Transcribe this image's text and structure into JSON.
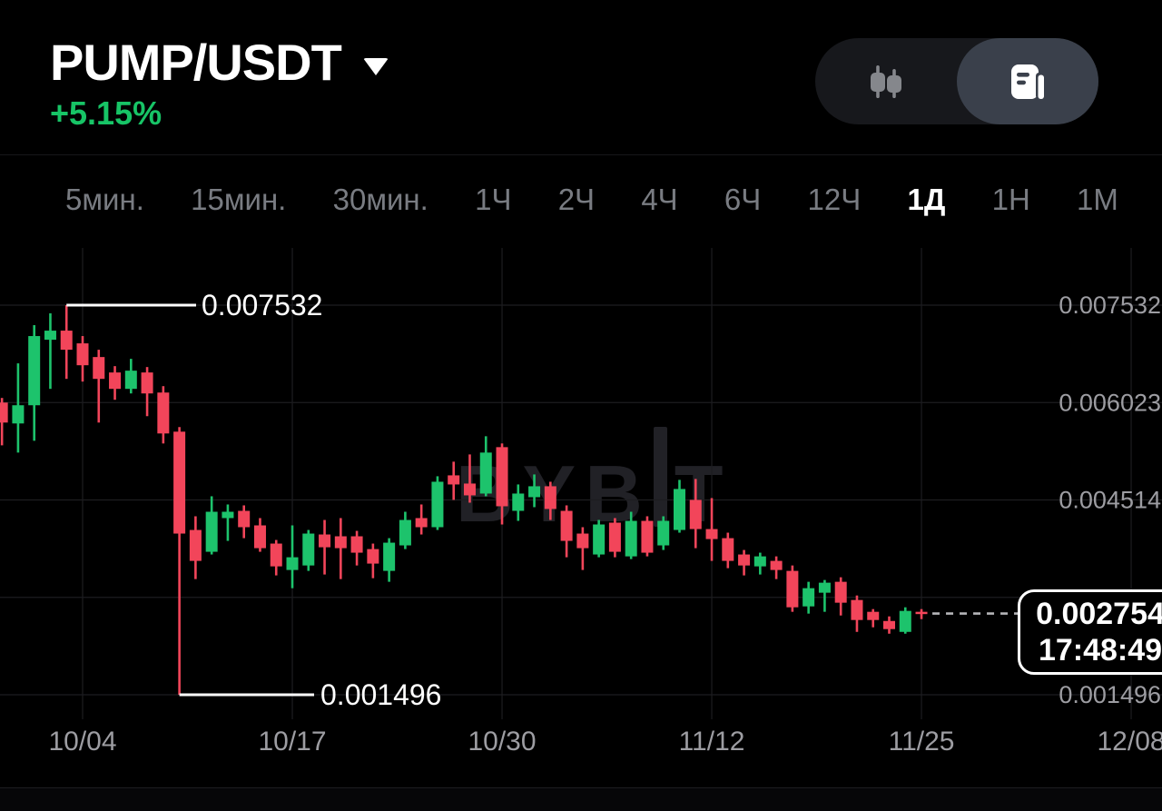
{
  "header": {
    "symbol": "PUMP/USDT",
    "change": "+5.15%"
  },
  "view_toggle": {
    "options": [
      {
        "name": "candlestick-view",
        "active": false
      },
      {
        "name": "orderbook-view",
        "active": true
      }
    ]
  },
  "timeframes": [
    {
      "label": "5мин.",
      "active": false
    },
    {
      "label": "15мин.",
      "active": false
    },
    {
      "label": "30мин.",
      "active": false
    },
    {
      "label": "1Ч",
      "active": false
    },
    {
      "label": "2Ч",
      "active": false
    },
    {
      "label": "4Ч",
      "active": false
    },
    {
      "label": "6Ч",
      "active": false
    },
    {
      "label": "12Ч",
      "active": false
    },
    {
      "label": "1Д",
      "active": true
    },
    {
      "label": "1Н",
      "active": false
    },
    {
      "label": "1М",
      "active": false
    }
  ],
  "watermark": {
    "left": "BYB",
    "right": "T"
  },
  "chart_data": {
    "type": "candlestick",
    "symbol": "PUMP/USDT",
    "timeframe": "1Д",
    "colors": {
      "up": "#1dc36c",
      "down": "#f2455a",
      "grid": "#1d1d20",
      "axis_text": "#9d9da2",
      "marker": "#ffffff",
      "dashed_line": "#b5b5b8"
    },
    "y_axis": {
      "labels": [
        {
          "text": "0.007532",
          "value": 0.007532
        },
        {
          "text": "0.006023",
          "value": 0.006023
        },
        {
          "text": "0.004514",
          "value": 0.004514
        },
        {
          "text": "0.001496",
          "value": 0.001496
        }
      ],
      "grid_values": [
        0.007532,
        0.006023,
        0.004514,
        0.003005,
        0.001496
      ],
      "range": [
        0.001496,
        0.007532
      ]
    },
    "x_axis": {
      "ticks": [
        {
          "label": "10/04",
          "index": 5
        },
        {
          "label": "10/17",
          "index": 18
        },
        {
          "label": "10/30",
          "index": 31
        },
        {
          "label": "11/12",
          "index": 44
        },
        {
          "label": "11/25",
          "index": 57
        },
        {
          "label": "12/08",
          "index": 70
        }
      ]
    },
    "high_marker": {
      "text": "0.007532",
      "value": 0.007532,
      "candle_index": 4
    },
    "low_marker": {
      "text": "0.001496",
      "value": 0.001496,
      "candle_index": 11
    },
    "last_price": {
      "price": "0.002754",
      "time": "17:48:49",
      "value": 0.002754
    },
    "candles": [
      [
        "09/29",
        0.006023,
        0.006094,
        0.00536,
        0.005713
      ],
      [
        "09/30",
        0.005699,
        0.00663,
        0.005248,
        0.005981
      ],
      [
        "10/01",
        0.005981,
        0.007222,
        0.005431,
        0.007053
      ],
      [
        "10/02",
        0.006996,
        0.007405,
        0.006235,
        0.007137
      ],
      [
        "10/03",
        0.007137,
        0.007532,
        0.00639,
        0.006841
      ],
      [
        "10/04",
        0.00694,
        0.007053,
        0.006348,
        0.006601
      ],
      [
        "10/05",
        0.006728,
        0.006841,
        0.005713,
        0.00639
      ],
      [
        "10/06",
        0.006489,
        0.006587,
        0.006066,
        0.006235
      ],
      [
        "10/07",
        0.006235,
        0.0067,
        0.006164,
        0.006517
      ],
      [
        "10/08",
        0.006489,
        0.006573,
        0.005812,
        0.006164
      ],
      [
        "10/09",
        0.006178,
        0.006277,
        0.005389,
        0.005544
      ],
      [
        "10/10",
        0.005572,
        0.005643,
        0.001496,
        0.003993
      ],
      [
        "10/11",
        0.004049,
        0.004261,
        0.003288,
        0.00357
      ],
      [
        "10/12",
        0.003711,
        0.004571,
        0.003669,
        0.004331
      ],
      [
        "10/13",
        0.004233,
        0.004444,
        0.00388,
        0.004331
      ],
      [
        "10/14",
        0.004345,
        0.00443,
        0.003922,
        0.004092
      ],
      [
        "10/15",
        0.00412,
        0.004233,
        0.003711,
        0.003767
      ],
      [
        "10/16",
        0.003838,
        0.003894,
        0.003345,
        0.003485
      ],
      [
        "10/17",
        0.003429,
        0.00412,
        0.003147,
        0.003626
      ],
      [
        "10/18",
        0.003499,
        0.004049,
        0.003415,
        0.003993
      ],
      [
        "10/19",
        0.003979,
        0.004204,
        0.003359,
        0.003781
      ],
      [
        "10/20",
        0.003951,
        0.004233,
        0.003288,
        0.003767
      ],
      [
        "10/21",
        0.003951,
        0.004035,
        0.003499,
        0.003697
      ],
      [
        "10/22",
        0.003753,
        0.003838,
        0.003302,
        0.003528
      ],
      [
        "10/23",
        0.003415,
        0.003922,
        0.003246,
        0.003852
      ],
      [
        "10/24",
        0.00381,
        0.004331,
        0.003753,
        0.004204
      ],
      [
        "10/25",
        0.004233,
        0.004444,
        0.003979,
        0.004092
      ],
      [
        "10/26",
        0.004092,
        0.004881,
        0.004049,
        0.004796
      ],
      [
        "10/27",
        0.004895,
        0.005107,
        0.004515,
        0.004754
      ],
      [
        "10/28",
        0.004768,
        0.005219,
        0.004472,
        0.004585
      ],
      [
        "10/29",
        0.004613,
        0.005501,
        0.004571,
        0.005248
      ],
      [
        "10/30",
        0.005332,
        0.005389,
        0.004134,
        0.004416
      ],
      [
        "10/31",
        0.004345,
        0.004754,
        0.00419,
        0.004613
      ],
      [
        "11/01",
        0.004557,
        0.004909,
        0.004402,
        0.004726
      ],
      [
        "11/02",
        0.004726,
        0.004796,
        0.004204,
        0.004374
      ],
      [
        "11/03",
        0.004345,
        0.00443,
        0.003626,
        0.00388
      ],
      [
        "11/04",
        0.003993,
        0.004092,
        0.003429,
        0.003767
      ],
      [
        "11/05",
        0.003669,
        0.004204,
        0.003626,
        0.004134
      ],
      [
        "11/06",
        0.004162,
        0.004233,
        0.003626,
        0.003711
      ],
      [
        "11/07",
        0.00364,
        0.004331,
        0.003598,
        0.00419
      ],
      [
        "11/08",
        0.00419,
        0.004261,
        0.00364,
        0.003697
      ],
      [
        "11/09",
        0.00381,
        0.004261,
        0.003739,
        0.00419
      ],
      [
        "11/10",
        0.004049,
        0.004825,
        0.004007,
        0.004684
      ],
      [
        "11/11",
        0.004515,
        0.004839,
        0.003767,
        0.004063
      ],
      [
        "11/12",
        0.004063,
        0.004543,
        0.00357,
        0.003908
      ],
      [
        "11/13",
        0.003922,
        0.004007,
        0.003457,
        0.00357
      ],
      [
        "11/14",
        0.003669,
        0.003739,
        0.003345,
        0.003499
      ],
      [
        "11/15",
        0.003485,
        0.003697,
        0.003359,
        0.00364
      ],
      [
        "11/16",
        0.00357,
        0.00364,
        0.003288,
        0.003429
      ],
      [
        "11/17",
        0.003415,
        0.003499,
        0.002781,
        0.002851
      ],
      [
        "11/18",
        0.002865,
        0.003246,
        0.002753,
        0.003147
      ],
      [
        "11/19",
        0.003077,
        0.003274,
        0.002781,
        0.003232
      ],
      [
        "11/20",
        0.003246,
        0.003316,
        0.002724,
        0.002922
      ],
      [
        "11/21",
        0.002964,
        0.003034,
        0.00247,
        0.002654
      ],
      [
        "11/22",
        0.002781,
        0.002823,
        0.002541,
        0.002654
      ],
      [
        "11/23",
        0.002639,
        0.00271,
        0.002442,
        0.002513
      ],
      [
        "11/24",
        0.00247,
        0.002851,
        0.002442,
        0.002795
      ],
      [
        "11/25",
        0.002781,
        0.002823,
        0.002668,
        0.002754
      ]
    ]
  }
}
